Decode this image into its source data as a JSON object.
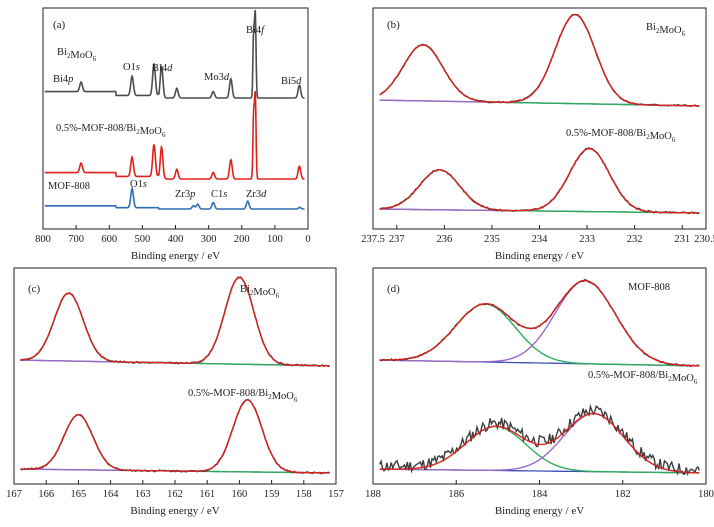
{
  "chart_data": [
    {
      "id": "a",
      "panel_label": "(a)",
      "type": "line",
      "xlabel": "Binding energy / eV",
      "xlim": [
        800,
        0
      ],
      "x_ticks": [
        "800",
        "700",
        "600",
        "500",
        "400",
        "300",
        "200",
        "100",
        "0"
      ],
      "series": [
        {
          "color": "#4d4d4d",
          "peaks": [
            [
              685,
              3
            ],
            [
              531,
              6
            ],
            [
              465,
              10
            ],
            [
              442,
              10
            ],
            [
              396,
              3
            ],
            [
              286,
              2
            ],
            [
              233,
              6
            ],
            [
              159,
              26
            ],
            [
              164,
              20
            ],
            [
              26,
              4
            ]
          ]
        },
        {
          "color": "#e0201b",
          "peaks": [
            [
              685,
              3
            ],
            [
              531,
              6
            ],
            [
              465,
              10
            ],
            [
              442,
              10
            ],
            [
              396,
              3
            ],
            [
              286,
              2
            ],
            [
              233,
              6
            ],
            [
              159,
              26
            ],
            [
              164,
              20
            ],
            [
              26,
              4
            ]
          ]
        },
        {
          "color": "#2f6db5",
          "peaks": [
            [
              531,
              12
            ],
            [
              346,
              2
            ],
            [
              333,
              3
            ],
            [
              286,
              4
            ],
            [
              182,
              5
            ],
            [
              25,
              1
            ]
          ]
        }
      ],
      "annotations": [
        {
          "text": "Bi2MoO6",
          "parts": [
            [
              "Bi",
              ""
            ],
            [
              "2",
              "sub"
            ],
            [
              "MoO",
              ""
            ],
            [
              "6",
              "sub"
            ]
          ]
        },
        {
          "text": "O1s",
          "parts": [
            [
              "O1",
              ""
            ],
            [
              "s",
              "i"
            ]
          ]
        },
        {
          "text": "Bi4d",
          "parts": [
            [
              "Bi4",
              ""
            ],
            [
              "d",
              "i"
            ]
          ]
        },
        {
          "text": "Bi4f",
          "parts": [
            [
              "Bi4",
              ""
            ],
            [
              "f",
              "i"
            ]
          ]
        },
        {
          "text": "Bi4p",
          "parts": [
            [
              "Bi4",
              ""
            ],
            [
              "p",
              "i"
            ]
          ]
        },
        {
          "text": "Mo3d",
          "parts": [
            [
              "Mo3",
              ""
            ],
            [
              "d",
              "i"
            ]
          ]
        },
        {
          "text": "Bi5d",
          "parts": [
            [
              "Bi5",
              ""
            ],
            [
              "d",
              "i"
            ]
          ]
        },
        {
          "text": "0.5%-MOF-808/Bi2MoO6",
          "parts": [
            [
              "0.5%-MOF-808/Bi",
              ""
            ],
            [
              "2",
              "sub"
            ],
            [
              "MoO",
              ""
            ],
            [
              "6",
              "sub"
            ]
          ]
        },
        {
          "text": "MOF-808",
          "parts": [
            [
              "MOF-808",
              ""
            ]
          ]
        },
        {
          "text": "O1s",
          "parts": [
            [
              "O1",
              ""
            ],
            [
              "s",
              "i"
            ]
          ]
        },
        {
          "text": "Zr3p",
          "parts": [
            [
              "Zr3",
              ""
            ],
            [
              "p",
              "i"
            ]
          ]
        },
        {
          "text": "C1s",
          "parts": [
            [
              "C1",
              ""
            ],
            [
              "s",
              "i"
            ]
          ]
        },
        {
          "text": "Zr3d",
          "parts": [
            [
              "Zr3",
              ""
            ],
            [
              "d",
              "i"
            ]
          ]
        }
      ]
    },
    {
      "id": "b",
      "panel_label": "(b)",
      "type": "line",
      "xlabel": "Binding energy / eV",
      "xlim": [
        237.5,
        230.5
      ],
      "x_ticks": [
        "237.5",
        "237",
        "236",
        "235",
        "234",
        "233",
        "232",
        "231",
        "230.5"
      ],
      "stacks": [
        {
          "peaks": [
            {
              "center": 236.45,
              "width": 0.42,
              "height": 56,
              "color": "#2eab5a"
            },
            {
              "center": 233.25,
              "width": 0.42,
              "height": 89,
              "color": "#9b6ac2"
            }
          ]
        },
        {
          "peaks": [
            {
              "center": 236.1,
              "width": 0.42,
              "height": 40,
              "color": "#2eab5a"
            },
            {
              "center": 232.95,
              "width": 0.42,
              "height": 63,
              "color": "#9b6ac2"
            }
          ]
        }
      ],
      "annotations": [
        {
          "text": "Bi2MoO6",
          "parts": [
            [
              "Bi",
              ""
            ],
            [
              "2",
              "sub"
            ],
            [
              "MoO",
              ""
            ],
            [
              "6",
              "sub"
            ]
          ]
        },
        {
          "text": "0.5%-MOF-808/Bi2MoO6",
          "parts": [
            [
              "0.5%-MOF-808/Bi",
              ""
            ],
            [
              "2",
              "sub"
            ],
            [
              "MoO",
              ""
            ],
            [
              "6",
              "sub"
            ]
          ]
        }
      ]
    },
    {
      "id": "c",
      "panel_label": "(c)",
      "type": "line",
      "xlabel": "Binding energy / eV",
      "xlim": [
        167,
        157
      ],
      "x_ticks": [
        "167",
        "166",
        "165",
        "164",
        "163",
        "162",
        "161",
        "160",
        "159",
        "158",
        "157"
      ],
      "stacks": [
        {
          "peaks": [
            {
              "center": 165.3,
              "width": 0.45,
              "height": 68,
              "color": "#2eab5a"
            },
            {
              "center": 160.0,
              "width": 0.45,
              "height": 87,
              "color": "#9b6ac2"
            }
          ]
        },
        {
          "peaks": [
            {
              "center": 165.0,
              "width": 0.45,
              "height": 55,
              "color": "#2eab5a"
            },
            {
              "center": 159.75,
              "width": 0.45,
              "height": 72,
              "color": "#9b6ac2"
            }
          ]
        }
      ],
      "annotations": [
        {
          "text": "Bi2MoO6",
          "parts": [
            [
              "Bi",
              ""
            ],
            [
              "2",
              "sub"
            ],
            [
              "MoO",
              ""
            ],
            [
              "6",
              "sub"
            ]
          ]
        },
        {
          "text": "0.5%-MOF-808/Bi2MoO6",
          "parts": [
            [
              "0.5%-MOF-808/Bi",
              ""
            ],
            [
              "2",
              "sub"
            ],
            [
              "MoO",
              ""
            ],
            [
              "6",
              "sub"
            ]
          ]
        }
      ]
    },
    {
      "id": "d",
      "panel_label": "(d)",
      "type": "line",
      "xlabel": "Binding energy / eV",
      "xlim": [
        188,
        180
      ],
      "x_ticks": [
        "188",
        "186",
        "184",
        "182",
        "180"
      ],
      "stacks": [
        {
          "peaks": [
            {
              "center": 185.3,
              "width": 0.72,
              "height": 58,
              "color": "#2eab5a"
            },
            {
              "center": 182.9,
              "width": 0.72,
              "height": 83,
              "color": "#9b6ac2"
            }
          ]
        },
        {
          "noisy": true,
          "peaks": [
            {
              "center": 185.05,
              "width": 0.72,
              "height": 44,
              "color": "#2eab5a"
            },
            {
              "center": 182.7,
              "width": 0.72,
              "height": 58,
              "color": "#9b6ac2"
            }
          ]
        }
      ],
      "annotations": [
        {
          "text": "MOF-808",
          "parts": [
            [
              "MOF-808",
              ""
            ]
          ]
        },
        {
          "text": "0.5%-MOF-808/Bi2MoO6",
          "parts": [
            [
              "0.5%-MOF-808/Bi",
              ""
            ],
            [
              "2",
              "sub"
            ],
            [
              "MoO",
              ""
            ],
            [
              "6",
              "sub"
            ]
          ]
        }
      ]
    }
  ]
}
